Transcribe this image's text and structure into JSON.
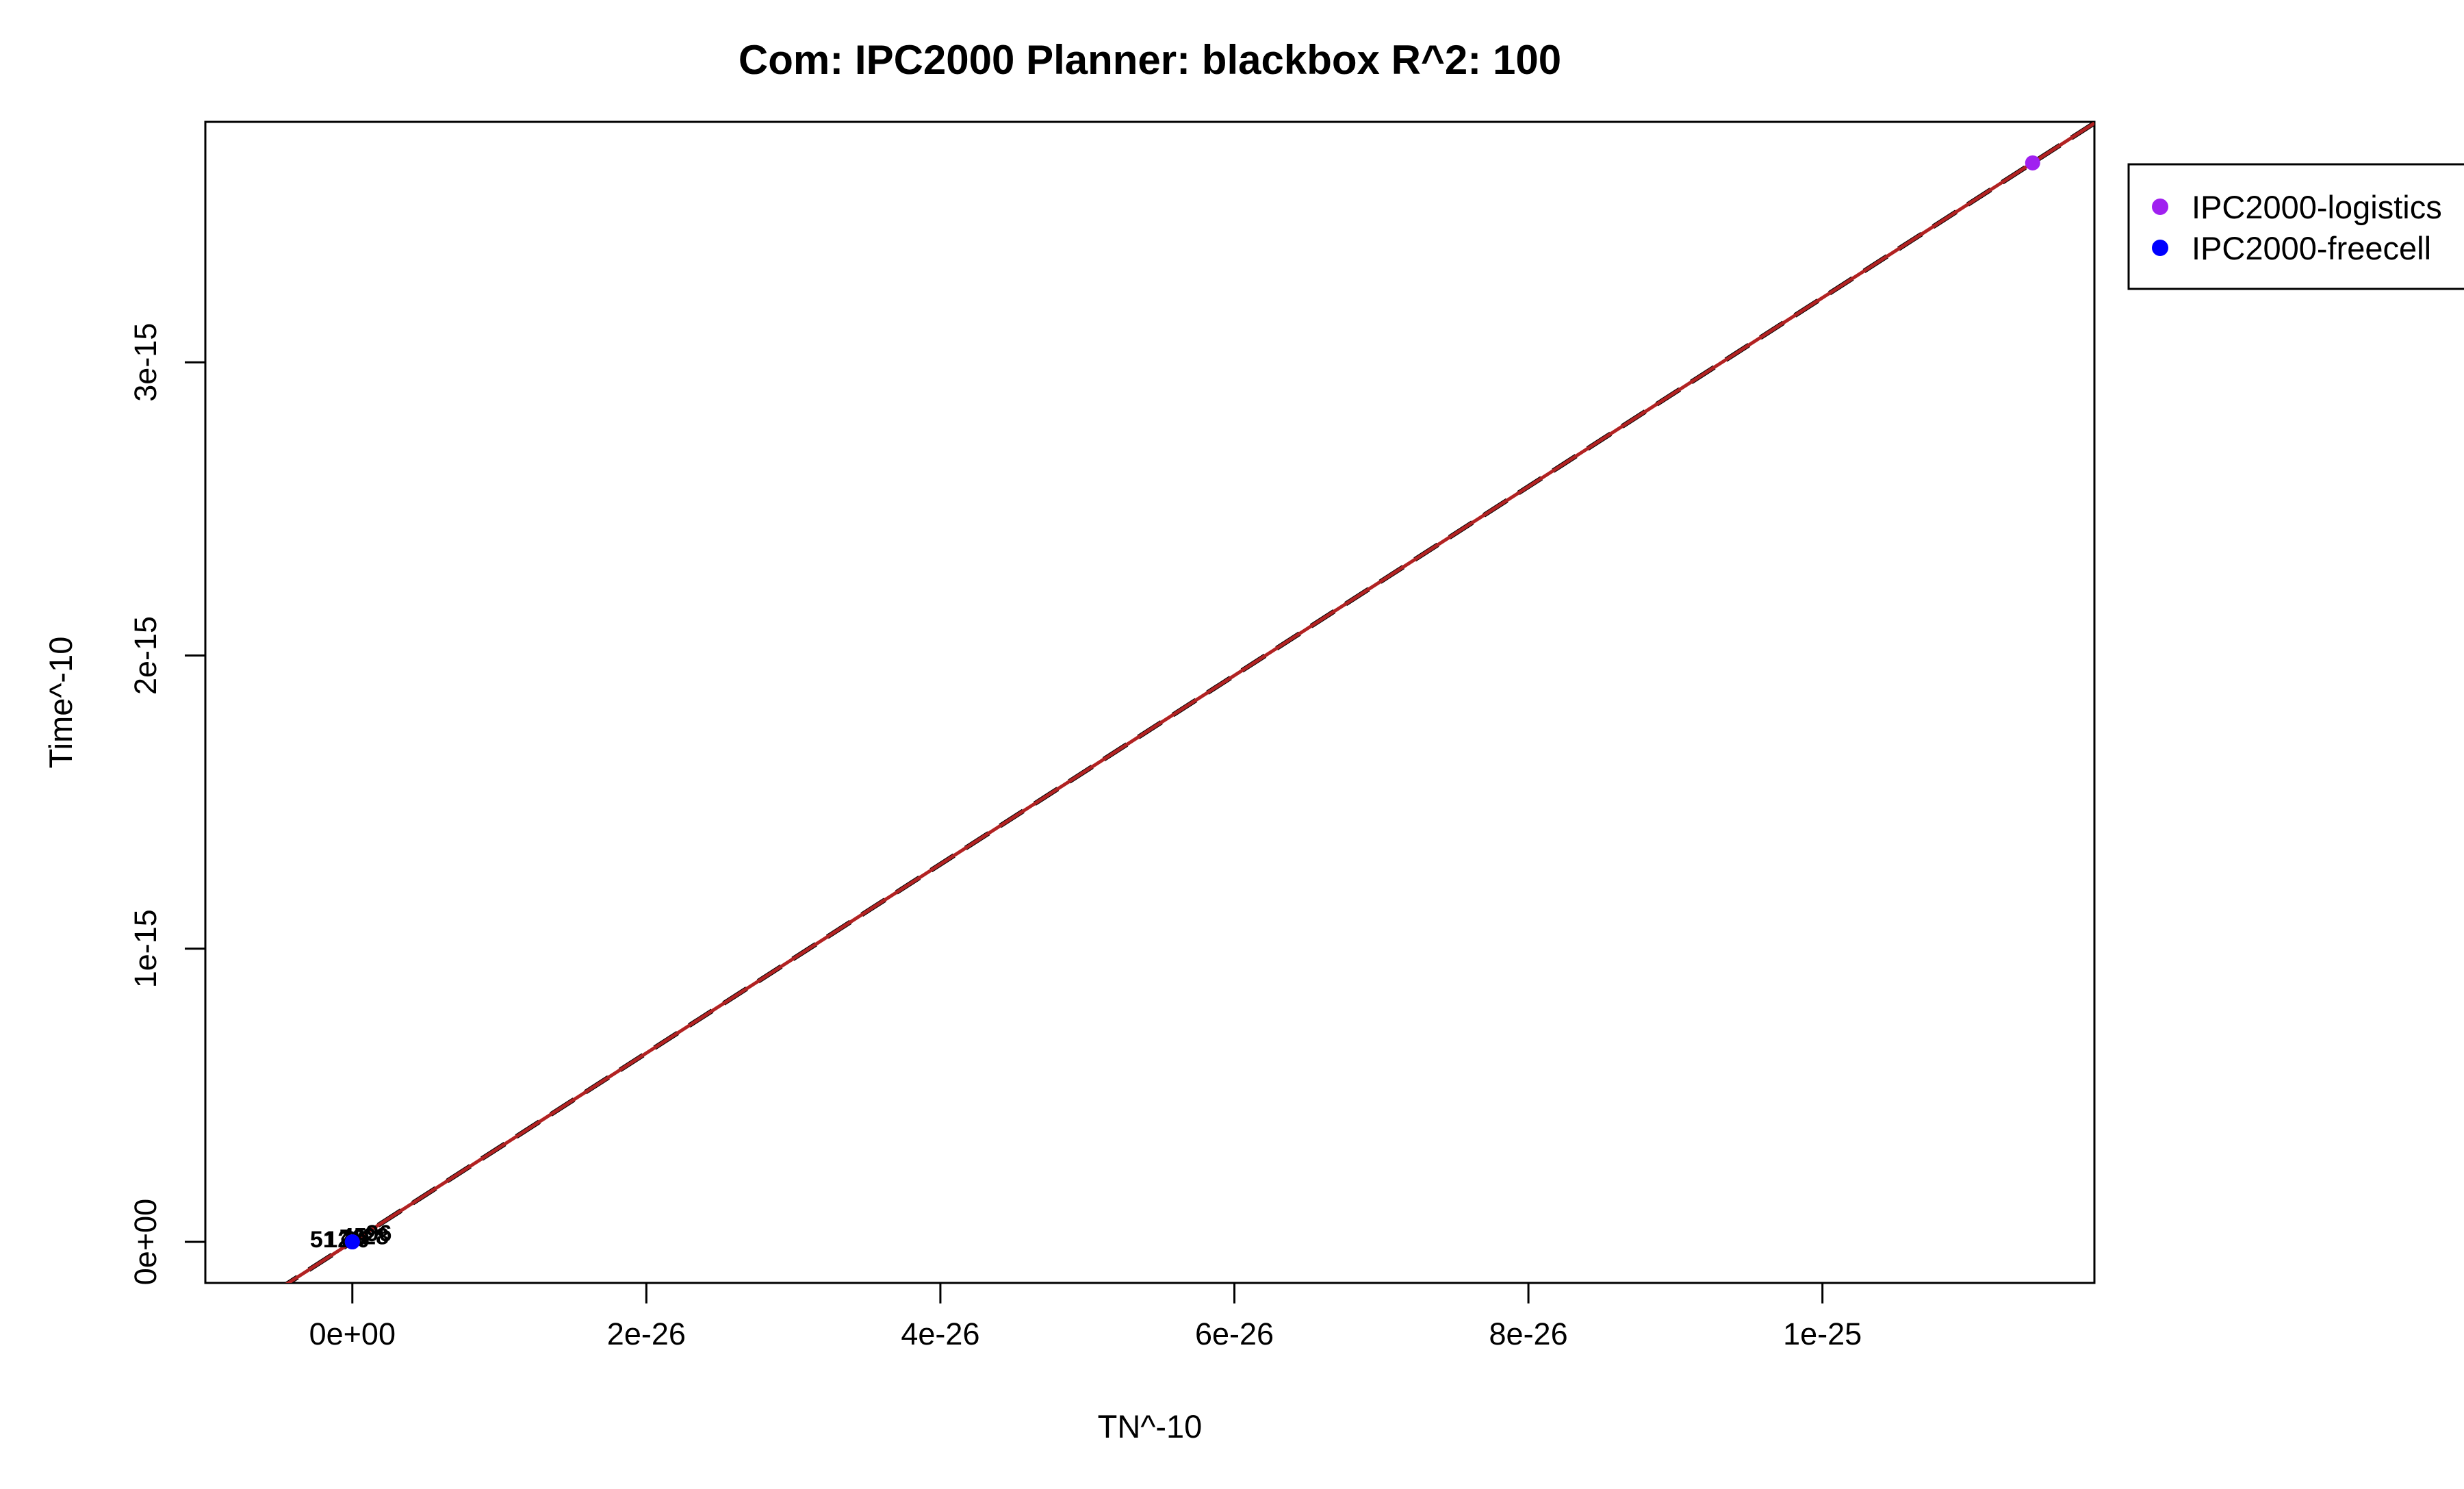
{
  "chart_data": {
    "type": "scatter",
    "title": "Com: IPC2000 Planner: blackbox R^2: 100",
    "xlabel": "TN^-10",
    "ylabel": "Time^-10",
    "xlim": [
      -1e-26,
      1.185e-25
    ],
    "ylim": [
      -1.4e-16,
      3.82e-15
    ],
    "x_ticks": [
      0,
      2e-26,
      4e-26,
      6e-26,
      8e-26,
      1e-25
    ],
    "x_tick_labels": [
      "0e+00",
      "2e-26",
      "4e-26",
      "6e-26",
      "8e-26",
      "1e-25"
    ],
    "y_ticks": [
      0,
      1e-15,
      2e-15,
      3e-15
    ],
    "y_tick_labels": [
      "0e+00",
      "1e-15",
      "2e-15",
      "3e-15"
    ],
    "grid": false,
    "legend_position": "outside-top-right",
    "series": [
      {
        "name": "IPC2000-logistics",
        "color": "#A020F0",
        "points": [
          [
            1.143e-25,
            3.68e-15
          ],
          [
            0.0,
            0.0
          ]
        ]
      },
      {
        "name": "IPC2000-freecell",
        "color": "#0000FF",
        "points": [
          [
            0.0,
            0.0
          ]
        ]
      }
    ],
    "cluster_labels": [
      {
        "x": -2e-27,
        "y": 1e-17,
        "text": "51"
      },
      {
        "x": -1e-27,
        "y": 1e-17,
        "text": "12"
      },
      {
        "x": 0.0,
        "y": 1.5e-17,
        "text": "73"
      },
      {
        "x": 1e-28,
        "y": 2e-17,
        "text": "45"
      },
      {
        "x": 1.6e-27,
        "y": 2e-17,
        "text": "28"
      },
      {
        "x": 1.8e-27,
        "y": 3e-17,
        "text": "96"
      },
      {
        "x": 3e-28,
        "y": 1e-17,
        "text": "30"
      }
    ],
    "lines": [
      {
        "name": "fit",
        "color": "#000000",
        "dash": true,
        "slope": 32200000000.0,
        "intercept": 0
      },
      {
        "name": "identity",
        "color": "#B22222",
        "dash": false,
        "slope": 32200000000.0,
        "intercept": 0
      }
    ]
  }
}
